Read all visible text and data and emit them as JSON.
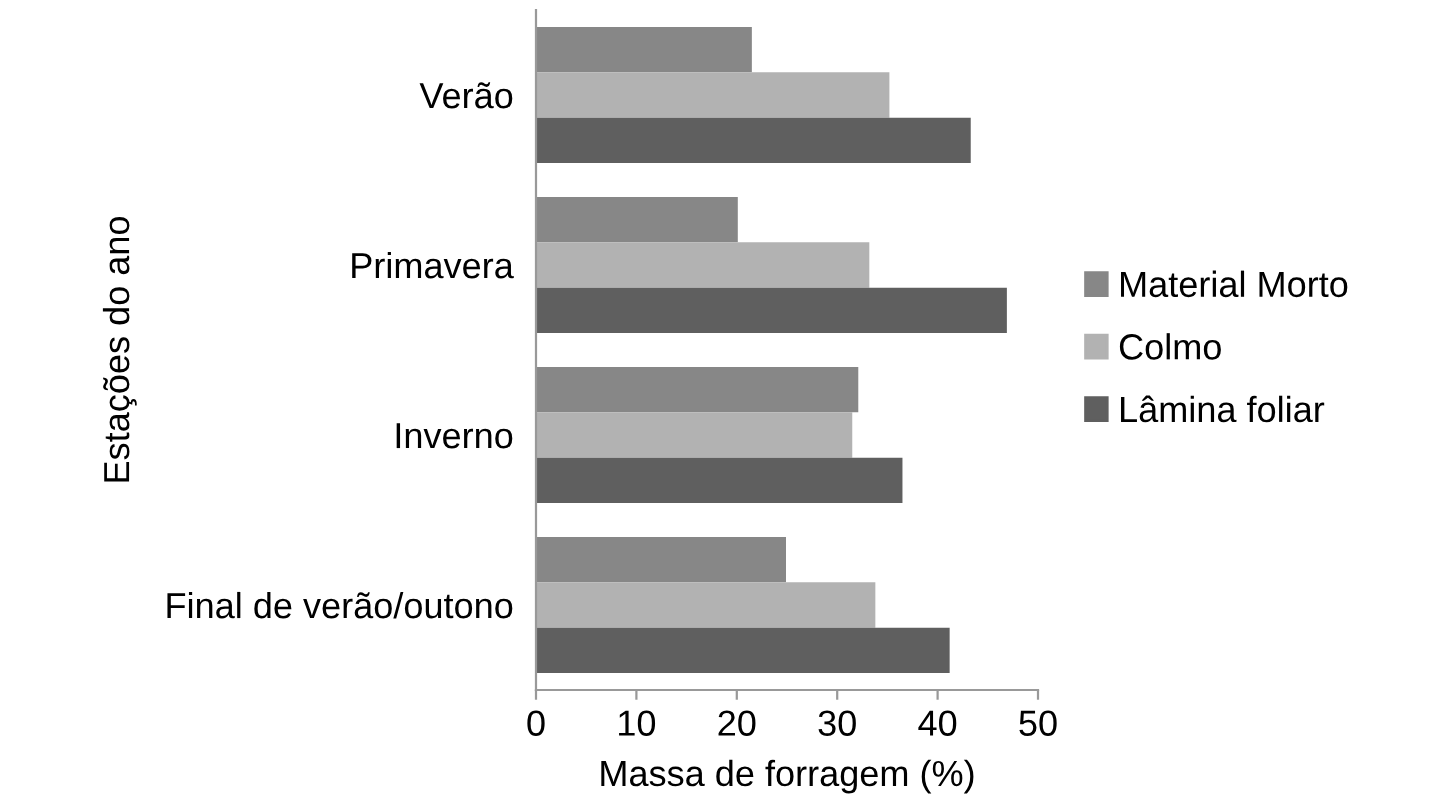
{
  "chart_data": {
    "type": "bar",
    "orientation": "horizontal",
    "xlabel": "Massa de forragem (%)",
    "ylabel": "Estações do ano",
    "categories": [
      "Verão",
      "Primavera",
      "Inverno",
      "Final de verão/outono"
    ],
    "series": [
      {
        "name": "Material Morto",
        "color": "#878787",
        "values": [
          21.5,
          20.1,
          32.1,
          24.9
        ]
      },
      {
        "name": "Colmo",
        "color": "#b2b2b2",
        "values": [
          35.2,
          33.2,
          31.5,
          33.8
        ]
      },
      {
        "name": "Lâmina foliar",
        "color": "#5f5f5f",
        "values": [
          43.3,
          46.9,
          36.5,
          41.2
        ]
      }
    ],
    "xlim": [
      0,
      50
    ],
    "xticks": [
      0,
      10,
      20,
      30,
      40,
      50
    ],
    "grid": false,
    "legend": "right"
  }
}
